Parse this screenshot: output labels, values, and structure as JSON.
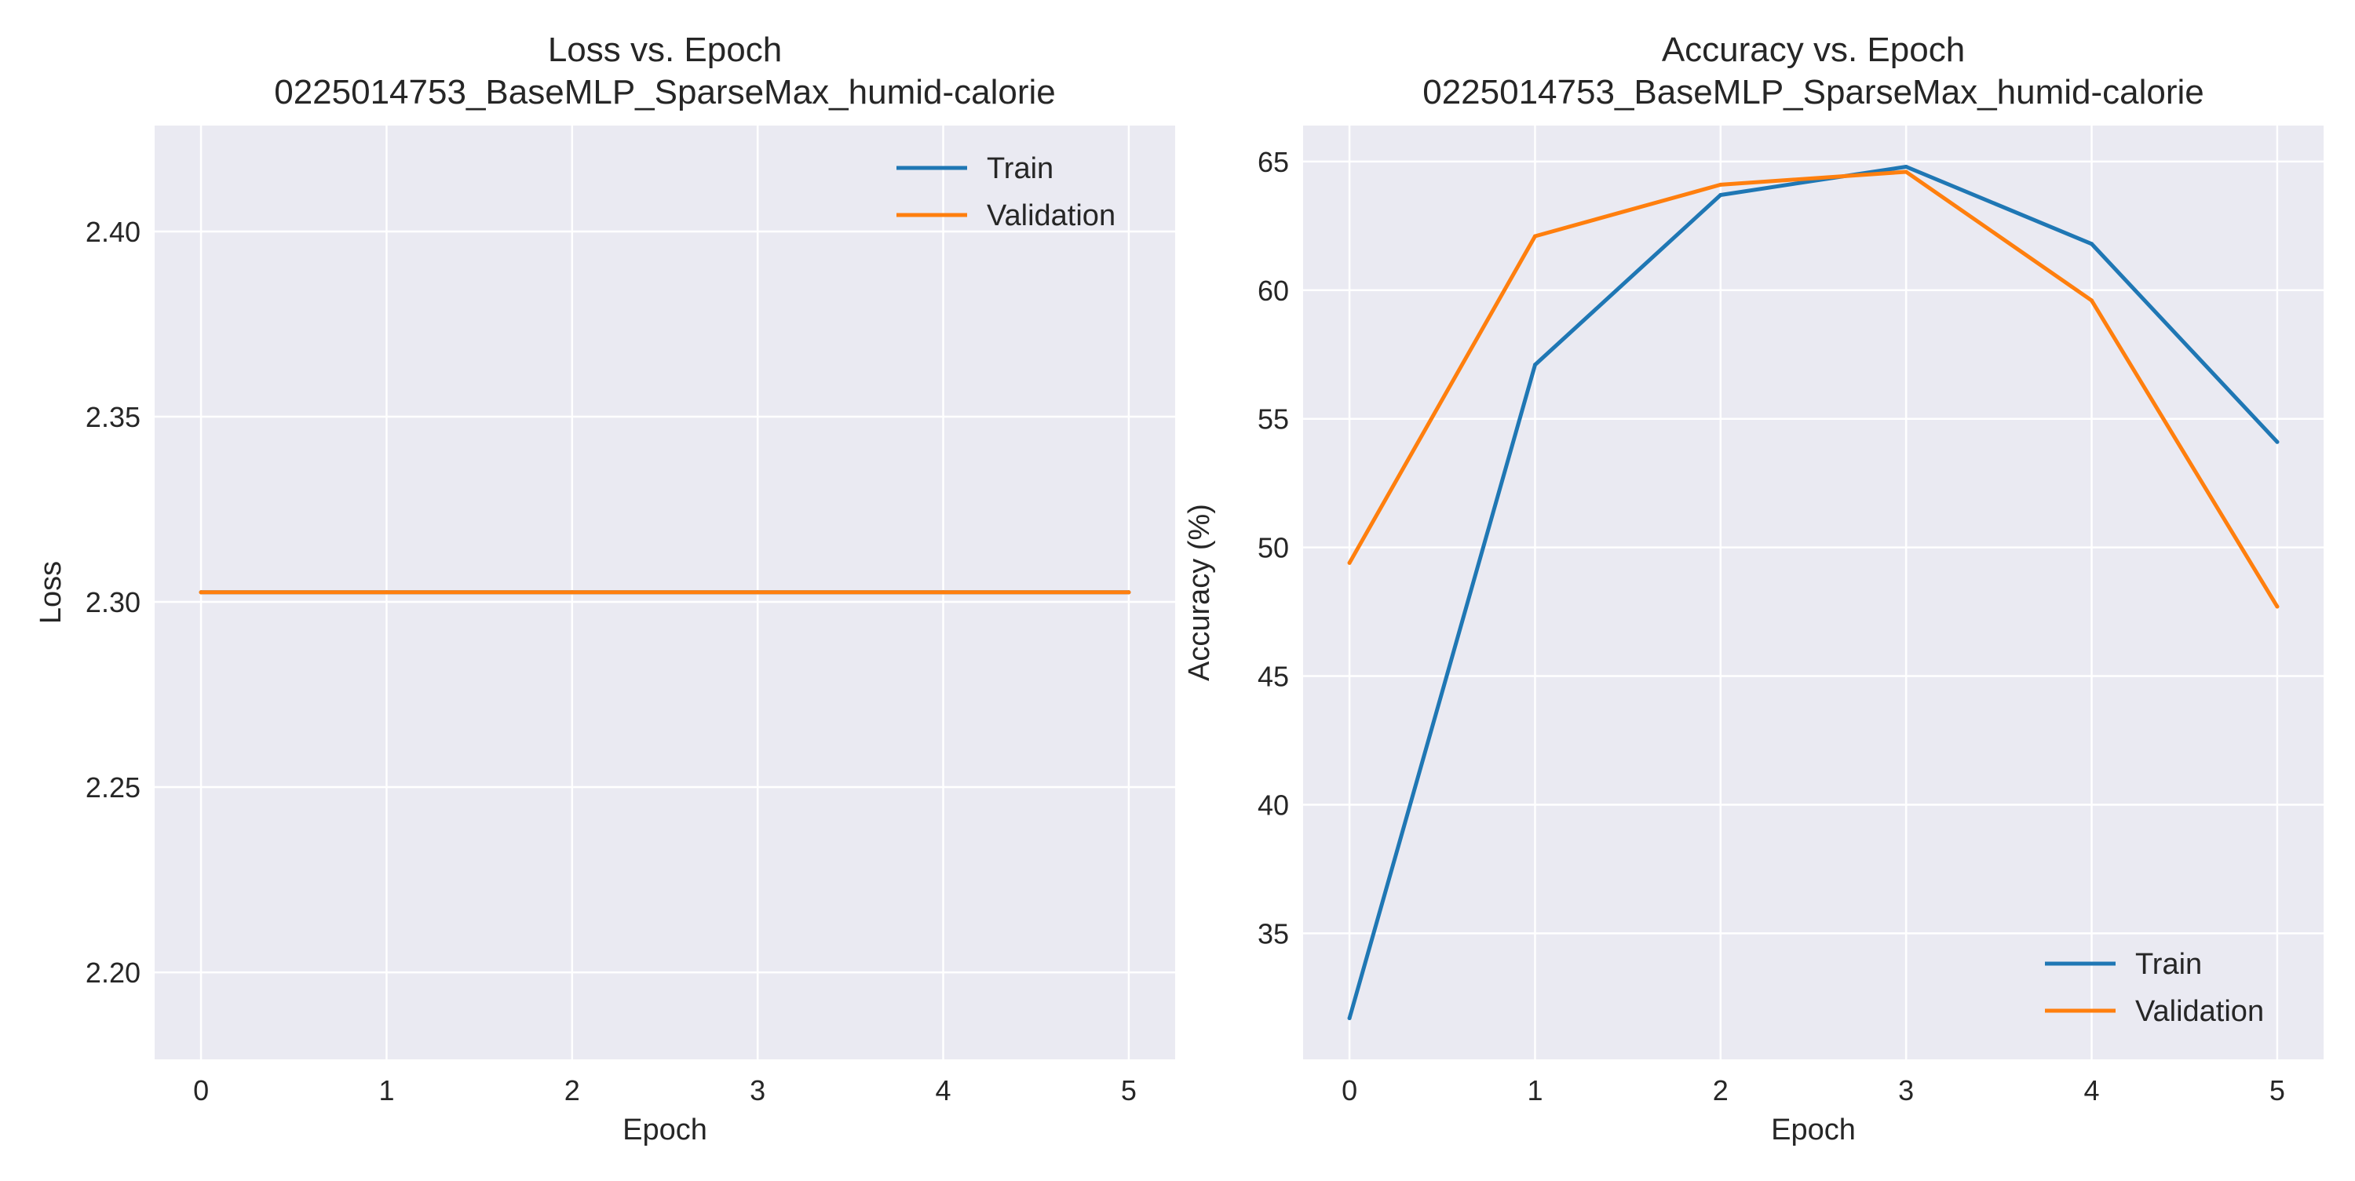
{
  "chart_data": [
    {
      "type": "line",
      "title": "Loss vs. Epoch",
      "subtitle": "0225014753_BaseMLP_SparseMax_humid-calorie",
      "xlabel": "Epoch",
      "ylabel": "Loss",
      "x": [
        0,
        1,
        2,
        3,
        4,
        5
      ],
      "xlim": [
        -0.25,
        5.25
      ],
      "ylim": [
        2.1765,
        2.4286
      ],
      "xticks": [
        0,
        1,
        2,
        3,
        4,
        5
      ],
      "yticks": [
        2.2,
        2.25,
        2.3,
        2.35,
        2.4
      ],
      "ytick_labels": [
        "2.20",
        "2.25",
        "2.30",
        "2.35",
        "2.40"
      ],
      "grid": true,
      "legend_position": "upper right",
      "series": [
        {
          "name": "Train",
          "color": "#1f77b4",
          "values": [
            2.3026,
            2.3026,
            2.3026,
            2.3026,
            2.3026,
            2.3026
          ]
        },
        {
          "name": "Validation",
          "color": "#ff7f0e",
          "values": [
            2.3026,
            2.3026,
            2.3026,
            2.3026,
            2.3026,
            2.3026
          ]
        }
      ]
    },
    {
      "type": "line",
      "title": "Accuracy vs. Epoch",
      "subtitle": "0225014753_BaseMLP_SparseMax_humid-calorie",
      "xlabel": "Epoch",
      "ylabel": "Accuracy (%)",
      "x": [
        0,
        1,
        2,
        3,
        4,
        5
      ],
      "xlim": [
        -0.25,
        5.25
      ],
      "ylim": [
        30.1,
        66.4
      ],
      "xticks": [
        0,
        1,
        2,
        3,
        4,
        5
      ],
      "yticks": [
        35,
        40,
        45,
        50,
        55,
        60,
        65
      ],
      "ytick_labels": [
        "35",
        "40",
        "45",
        "50",
        "55",
        "60",
        "65"
      ],
      "grid": true,
      "legend_position": "lower right",
      "series": [
        {
          "name": "Train",
          "color": "#1f77b4",
          "values": [
            31.7,
            57.1,
            63.7,
            64.8,
            61.8,
            54.1
          ]
        },
        {
          "name": "Validation",
          "color": "#ff7f0e",
          "values": [
            49.4,
            62.1,
            64.1,
            64.6,
            59.6,
            47.7
          ]
        }
      ]
    }
  ],
  "style": {
    "axes_background": "#eaeaf2",
    "grid_color": "#ffffff",
    "text_color": "#262626"
  }
}
